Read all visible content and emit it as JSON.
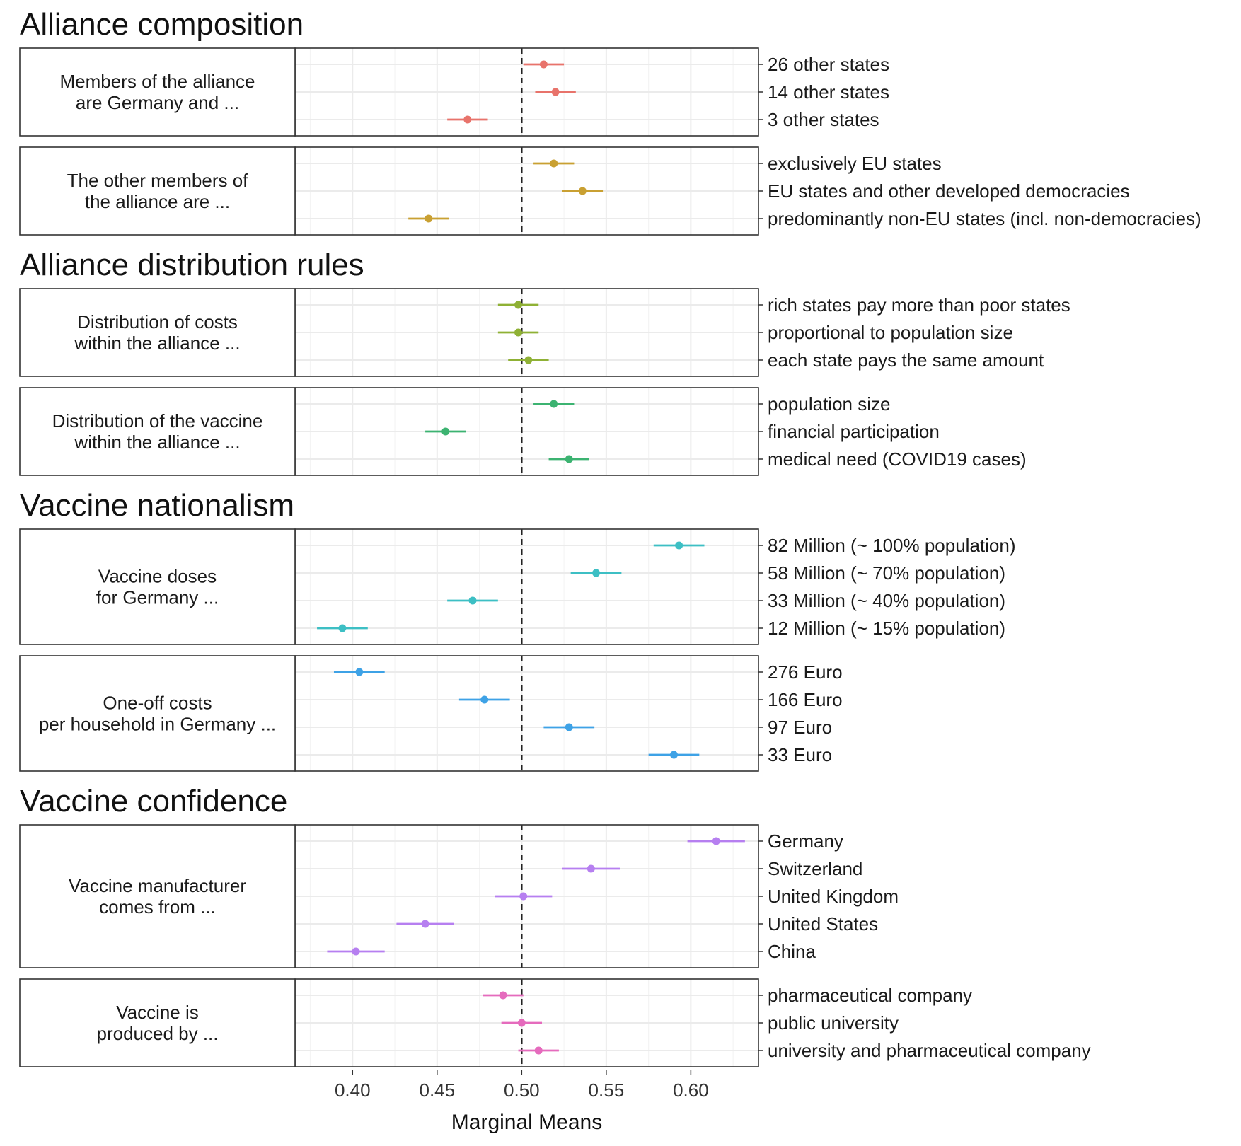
{
  "chart_data": {
    "type": "scatter",
    "variant": "dot-and-whisker (point estimates with confidence intervals)",
    "xlabel": "Marginal Means",
    "xlim": [
      0.366,
      0.64
    ],
    "xticks": [
      0.4,
      0.45,
      0.5,
      0.55,
      0.6
    ],
    "xtick_labels": [
      "0.40",
      "0.45",
      "0.50",
      "0.55",
      "0.60"
    ],
    "reference_line": 0.5,
    "grid": true,
    "sections": [
      {
        "title": "Alliance composition",
        "panels": [
          {
            "label": [
              "Members of the alliance",
              "are Germany and ..."
            ],
            "color": "#e8736b",
            "levels": [
              {
                "name": "26 other states",
                "value": 0.513,
                "ci": [
                  0.501,
                  0.525
                ]
              },
              {
                "name": "14 other states",
                "value": 0.52,
                "ci": [
                  0.508,
                  0.532
                ]
              },
              {
                "name": "3 other states",
                "value": 0.468,
                "ci": [
                  0.456,
                  0.48
                ]
              }
            ]
          },
          {
            "label": [
              "The other members of",
              "the alliance are ..."
            ],
            "color": "#c9a032",
            "levels": [
              {
                "name": "exclusively EU states",
                "value": 0.519,
                "ci": [
                  0.507,
                  0.531
                ]
              },
              {
                "name": "EU states and other developed democracies",
                "value": 0.536,
                "ci": [
                  0.524,
                  0.548
                ]
              },
              {
                "name": "predominantly non-EU states (incl. non-democracies)",
                "value": 0.445,
                "ci": [
                  0.433,
                  0.457
                ]
              }
            ]
          }
        ]
      },
      {
        "title": "Alliance distribution rules",
        "panels": [
          {
            "label": [
              "Distribution of costs",
              "within the alliance ..."
            ],
            "color": "#8fb135",
            "levels": [
              {
                "name": "rich states pay more than poor states",
                "value": 0.498,
                "ci": [
                  0.486,
                  0.51
                ]
              },
              {
                "name": "proportional to population size",
                "value": 0.498,
                "ci": [
                  0.486,
                  0.51
                ]
              },
              {
                "name": "each state pays the same amount",
                "value": 0.504,
                "ci": [
                  0.492,
                  0.516
                ]
              }
            ]
          },
          {
            "label": [
              "Distribution of the vaccine",
              "within the alliance ..."
            ],
            "color": "#3cb371",
            "levels": [
              {
                "name": "population size",
                "value": 0.519,
                "ci": [
                  0.507,
                  0.531
                ]
              },
              {
                "name": "financial participation",
                "value": 0.455,
                "ci": [
                  0.443,
                  0.467
                ]
              },
              {
                "name": "medical need (COVID19 cases)",
                "value": 0.528,
                "ci": [
                  0.516,
                  0.54
                ]
              }
            ]
          }
        ]
      },
      {
        "title": "Vaccine nationalism",
        "panels": [
          {
            "label": [
              "Vaccine doses",
              "for Germany ..."
            ],
            "color": "#3dbfc4",
            "levels": [
              {
                "name": "82 Million (~ 100% population)",
                "value": 0.593,
                "ci": [
                  0.578,
                  0.608
                ]
              },
              {
                "name": "58 Million (~ 70% population)",
                "value": 0.544,
                "ci": [
                  0.529,
                  0.559
                ]
              },
              {
                "name": "33 Million (~ 40% population)",
                "value": 0.471,
                "ci": [
                  0.456,
                  0.486
                ]
              },
              {
                "name": "12 Million (~ 15% population)",
                "value": 0.394,
                "ci": [
                  0.379,
                  0.409
                ]
              }
            ]
          },
          {
            "label": [
              "One-off costs",
              "per household in Germany ..."
            ],
            "color": "#3ea2e6",
            "levels": [
              {
                "name": "276 Euro",
                "value": 0.404,
                "ci": [
                  0.389,
                  0.419
                ]
              },
              {
                "name": "166 Euro",
                "value": 0.478,
                "ci": [
                  0.463,
                  0.493
                ]
              },
              {
                "name": "97 Euro",
                "value": 0.528,
                "ci": [
                  0.513,
                  0.543
                ]
              },
              {
                "name": "33 Euro",
                "value": 0.59,
                "ci": [
                  0.575,
                  0.605
                ]
              }
            ]
          }
        ]
      },
      {
        "title": "Vaccine confidence",
        "panels": [
          {
            "label": [
              "Vaccine manufacturer",
              "comes from ..."
            ],
            "color": "#b67ff0",
            "levels": [
              {
                "name": "Germany",
                "value": 0.615,
                "ci": [
                  0.598,
                  0.632
                ]
              },
              {
                "name": "Switzerland",
                "value": 0.541,
                "ci": [
                  0.524,
                  0.558
                ]
              },
              {
                "name": "United Kingdom",
                "value": 0.501,
                "ci": [
                  0.484,
                  0.518
                ]
              },
              {
                "name": "United States",
                "value": 0.443,
                "ci": [
                  0.426,
                  0.46
                ]
              },
              {
                "name": "China",
                "value": 0.402,
                "ci": [
                  0.385,
                  0.419
                ]
              }
            ]
          },
          {
            "label": [
              "Vaccine is",
              "produced by ..."
            ],
            "color": "#e56bbd",
            "levels": [
              {
                "name": "pharmaceutical company",
                "value": 0.489,
                "ci": [
                  0.477,
                  0.501
                ]
              },
              {
                "name": "public university",
                "value": 0.5,
                "ci": [
                  0.488,
                  0.512
                ]
              },
              {
                "name": "university and pharmaceutical company",
                "value": 0.51,
                "ci": [
                  0.498,
                  0.522
                ]
              }
            ]
          }
        ]
      }
    ]
  }
}
